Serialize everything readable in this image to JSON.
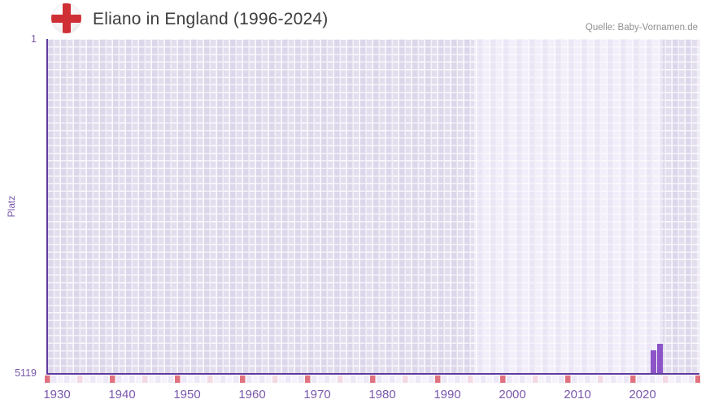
{
  "header": {
    "title": "Eliano in England (1996-2024)",
    "source": "Quelle: Baby-Vornamen.de",
    "flag_icon": "england-st-george-cross-flag"
  },
  "y_axis": {
    "label": "Platz",
    "top_tick": "1",
    "bottom_tick": "5119"
  },
  "chart_data": {
    "type": "bar",
    "title": "Eliano in England (1996-2024)",
    "xlabel": "",
    "ylabel": "Platz",
    "y_domain": [
      1,
      5119
    ],
    "y_inverted": true,
    "x_domain_years": [
      1930,
      2030
    ],
    "x_tick_labels": [
      "1930",
      "1940",
      "1950",
      "1960",
      "1970",
      "1980",
      "1990",
      "2000",
      "2010",
      "2020"
    ],
    "highlight_band_years": {
      "from": 1996,
      "to": 2024
    },
    "series": [
      {
        "name": "Eliano",
        "points": [
          {
            "year": 2023,
            "rank": 4772
          },
          {
            "year": 2024,
            "rank": 4668
          }
        ]
      }
    ],
    "decade_marker_years": [
      1930,
      1940,
      1950,
      1960,
      1970,
      1980,
      1990,
      2000,
      2010,
      2020,
      2030
    ],
    "half_decade_marker_years": [
      1935,
      1945,
      1955,
      1965,
      1975,
      1985,
      1995,
      2005,
      2015,
      2025
    ],
    "grid": true,
    "legend": "none",
    "colors": {
      "bar": "#8b55c7",
      "axis_line": "#5e3b9e",
      "tick_text": "#7a58ac",
      "title_text": "#3d3d3d",
      "source_text": "#909090",
      "cell_base": "#e3deee",
      "cell_highlight": "#f2eefa",
      "decade_marker": "#e0727f",
      "half_decade_marker": "#f3d9e3",
      "flag_red": "#d02f35"
    }
  }
}
